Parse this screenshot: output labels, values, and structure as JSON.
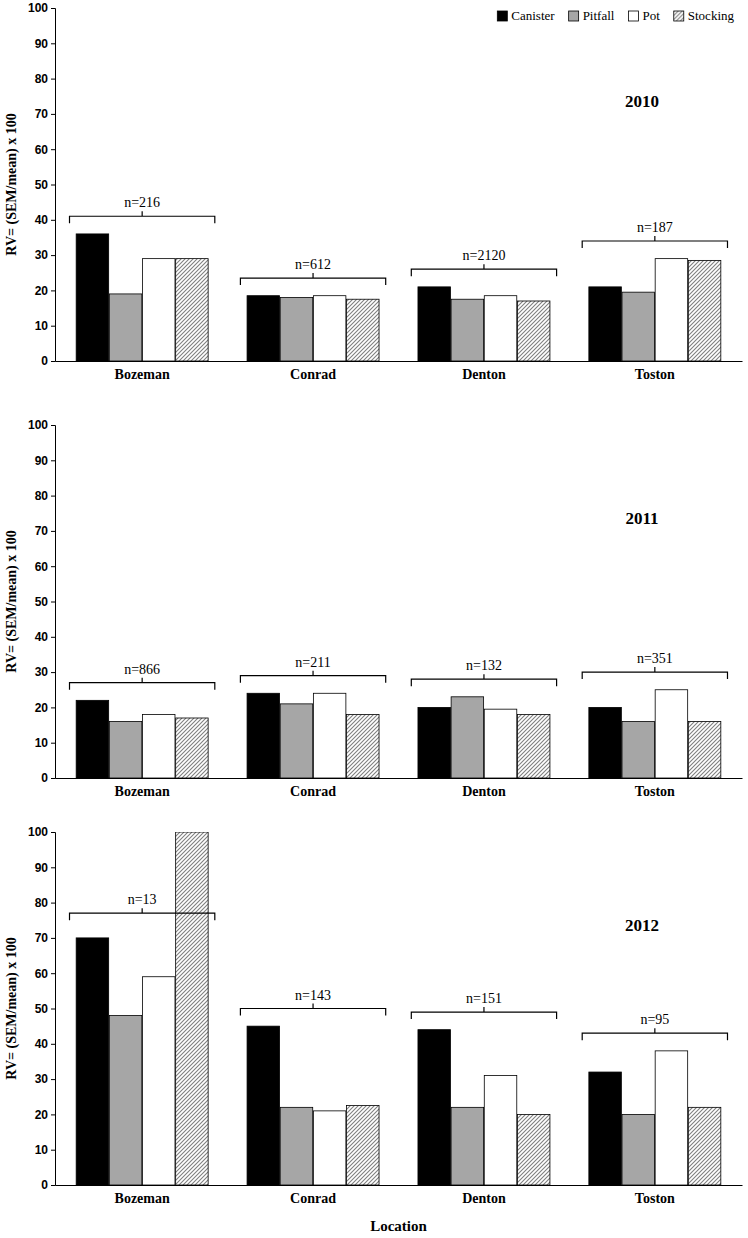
{
  "chart_data": [
    {
      "type": "bar",
      "title": "2010",
      "y_label": "RV= (SEM/mean) x 100",
      "categories": [
        "Bozeman",
        "Conrad",
        "Denton",
        "Toston"
      ],
      "annotations": [
        "n=216",
        "n=612",
        "n=2120",
        "n=187"
      ],
      "series": [
        {
          "name": "Canister",
          "color": "#000000",
          "values": [
            36,
            18.5,
            21,
            21
          ]
        },
        {
          "name": "Pitfall",
          "color": "#a6a6a6",
          "values": [
            19,
            18,
            17.5,
            19.5
          ]
        },
        {
          "name": "Pot",
          "color": "#ffffff",
          "values": [
            29,
            18.5,
            18.5,
            29
          ]
        },
        {
          "name": "Stocking",
          "color": "#7f7f7f",
          "values": [
            29,
            17.5,
            17,
            28.5
          ]
        }
      ],
      "ylim": [
        0,
        100
      ],
      "yticks": [
        0,
        10,
        20,
        30,
        40,
        50,
        60,
        70,
        80,
        90,
        100
      ],
      "legend": "top-right"
    },
    {
      "type": "bar",
      "title": "2011",
      "y_label": "RV= (SEM/mean) x 100",
      "categories": [
        "Bozeman",
        "Conrad",
        "Denton",
        "Toston"
      ],
      "annotations": [
        "n=866",
        "n=211",
        "n=132",
        "n=351"
      ],
      "series": [
        {
          "color": "#000000",
          "values": [
            22,
            24,
            20,
            20
          ]
        },
        {
          "color": "#a6a6a6",
          "values": [
            16,
            21,
            23,
            16
          ]
        },
        {
          "color": "#ffffff",
          "values": [
            18,
            24,
            19.5,
            25
          ]
        },
        {
          "color": "#7f7f7f",
          "values": [
            17,
            18,
            18,
            16
          ]
        }
      ],
      "ylim": [
        0,
        100
      ],
      "yticks": [
        0,
        10,
        20,
        30,
        40,
        50,
        60,
        70,
        80,
        90,
        100
      ]
    },
    {
      "type": "bar",
      "title": "2012",
      "y_label": "RV= (SEM/mean) x 100",
      "x_label": "Location",
      "categories": [
        "Bozeman",
        "Conrad",
        "Denton",
        "Toston"
      ],
      "annotations": [
        "n=13",
        "n=143",
        "n=151",
        "n=95"
      ],
      "series": [
        {
          "color": "#000000",
          "values": [
            70,
            45,
            44,
            32
          ]
        },
        {
          "color": "#a6a6a6",
          "values": [
            48,
            22,
            22,
            20
          ]
        },
        {
          "color": "#ffffff",
          "values": [
            59,
            21,
            31,
            38
          ]
        },
        {
          "color": "#7f7f7f",
          "values": [
            100,
            22.5,
            20,
            22
          ]
        }
      ],
      "ylim": [
        0,
        100
      ],
      "yticks": [
        0,
        10,
        20,
        30,
        40,
        50,
        60,
        70,
        80,
        90,
        100
      ]
    }
  ]
}
